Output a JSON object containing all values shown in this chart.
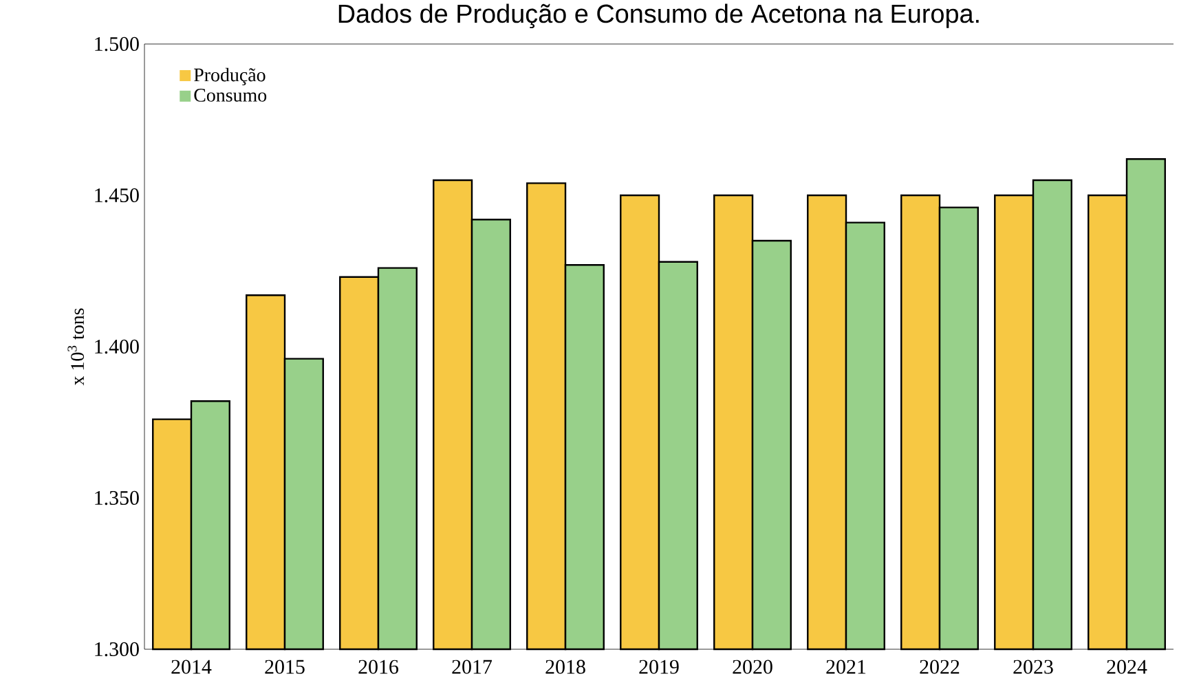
{
  "chart_data": {
    "type": "bar",
    "title": "Dados de Produção e Consumo de Acetona na Europa.",
    "ylabel": "x 10$^{3}$ tons",
    "categories": [
      "2014",
      "2015",
      "2016",
      "2017",
      "2018",
      "2019",
      "2020",
      "2021",
      "2022",
      "2023",
      "2024"
    ],
    "series": [
      {
        "name": "Produção",
        "color": "#f7c843",
        "values": [
          1.376,
          1.417,
          1.423,
          1.455,
          1.454,
          1.45,
          1.45,
          1.45,
          1.45,
          1.45,
          1.45
        ]
      },
      {
        "name": "Consumo",
        "color": "#98d08a",
        "values": [
          1.382,
          1.396,
          1.426,
          1.442,
          1.427,
          1.428,
          1.435,
          1.441,
          1.446,
          1.455,
          1.462
        ]
      }
    ],
    "ylim": [
      1.3,
      1.5
    ],
    "yticks": [
      {
        "value": 1.3,
        "label": "1.300"
      },
      {
        "value": 1.35,
        "label": "1.350"
      },
      {
        "value": 1.4,
        "label": "1.400"
      },
      {
        "value": 1.45,
        "label": "1.450"
      },
      {
        "value": 1.5,
        "label": "1.500"
      }
    ],
    "legend": "top left",
    "grid": false
  }
}
